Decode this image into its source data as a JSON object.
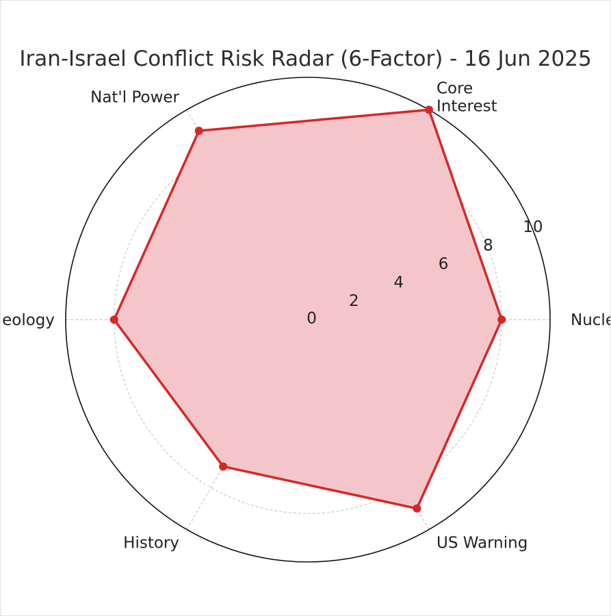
{
  "chart_data": {
    "type": "radar",
    "title": "Iran-Israel Conflict Risk Radar (6-Factor) - 16 Jun 2025",
    "categories": [
      "Nuclear",
      "Core\nInterest",
      "Nat'l Power",
      "Ideology",
      "History",
      "US Warning"
    ],
    "series": [
      {
        "values": [
          8,
          10,
          9,
          8,
          7,
          9
        ]
      }
    ],
    "rlim": [
      0,
      10
    ],
    "r_ticks": [
      0,
      2,
      4,
      6,
      8,
      10
    ],
    "grid": true,
    "colors": {
      "line": "#d62728",
      "fill": "#f4c6ca",
      "grid": "#c8c8c8",
      "outer": "#111111"
    }
  }
}
